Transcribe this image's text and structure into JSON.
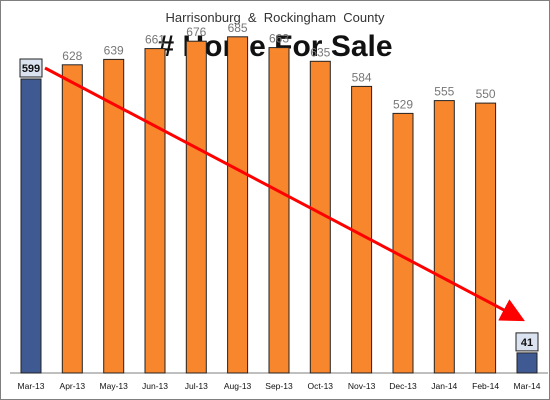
{
  "chart_data": {
    "type": "bar",
    "title": "# Home For Sale",
    "subtitle": "Harrisonburg  &  Rockingham  County",
    "categories": [
      "Mar-13",
      "Apr-13",
      "May-13",
      "Jun-13",
      "Jul-13",
      "Aug-13",
      "Sep-13",
      "Oct-13",
      "Nov-13",
      "Dec-13",
      "Jan-14",
      "Feb-14",
      "Mar-14"
    ],
    "values": [
      599,
      628,
      639,
      661,
      676,
      685,
      663,
      635,
      584,
      529,
      555,
      550,
      41
    ],
    "highlighted": [
      "Mar-13",
      "Mar-14"
    ],
    "xlabel": "",
    "ylabel": "",
    "ylim": [
      0,
      760
    ],
    "grid": false,
    "trend_arrow": {
      "from": "Mar-13",
      "to": "Mar-14"
    },
    "colors": {
      "highlight_bar": "#3f5a93",
      "bar": "#f7862d",
      "bar_outline": "#222222",
      "arrow": "#ff0000",
      "label_highlight_bg": "#dbe3f0",
      "label_text": "#777777"
    }
  }
}
